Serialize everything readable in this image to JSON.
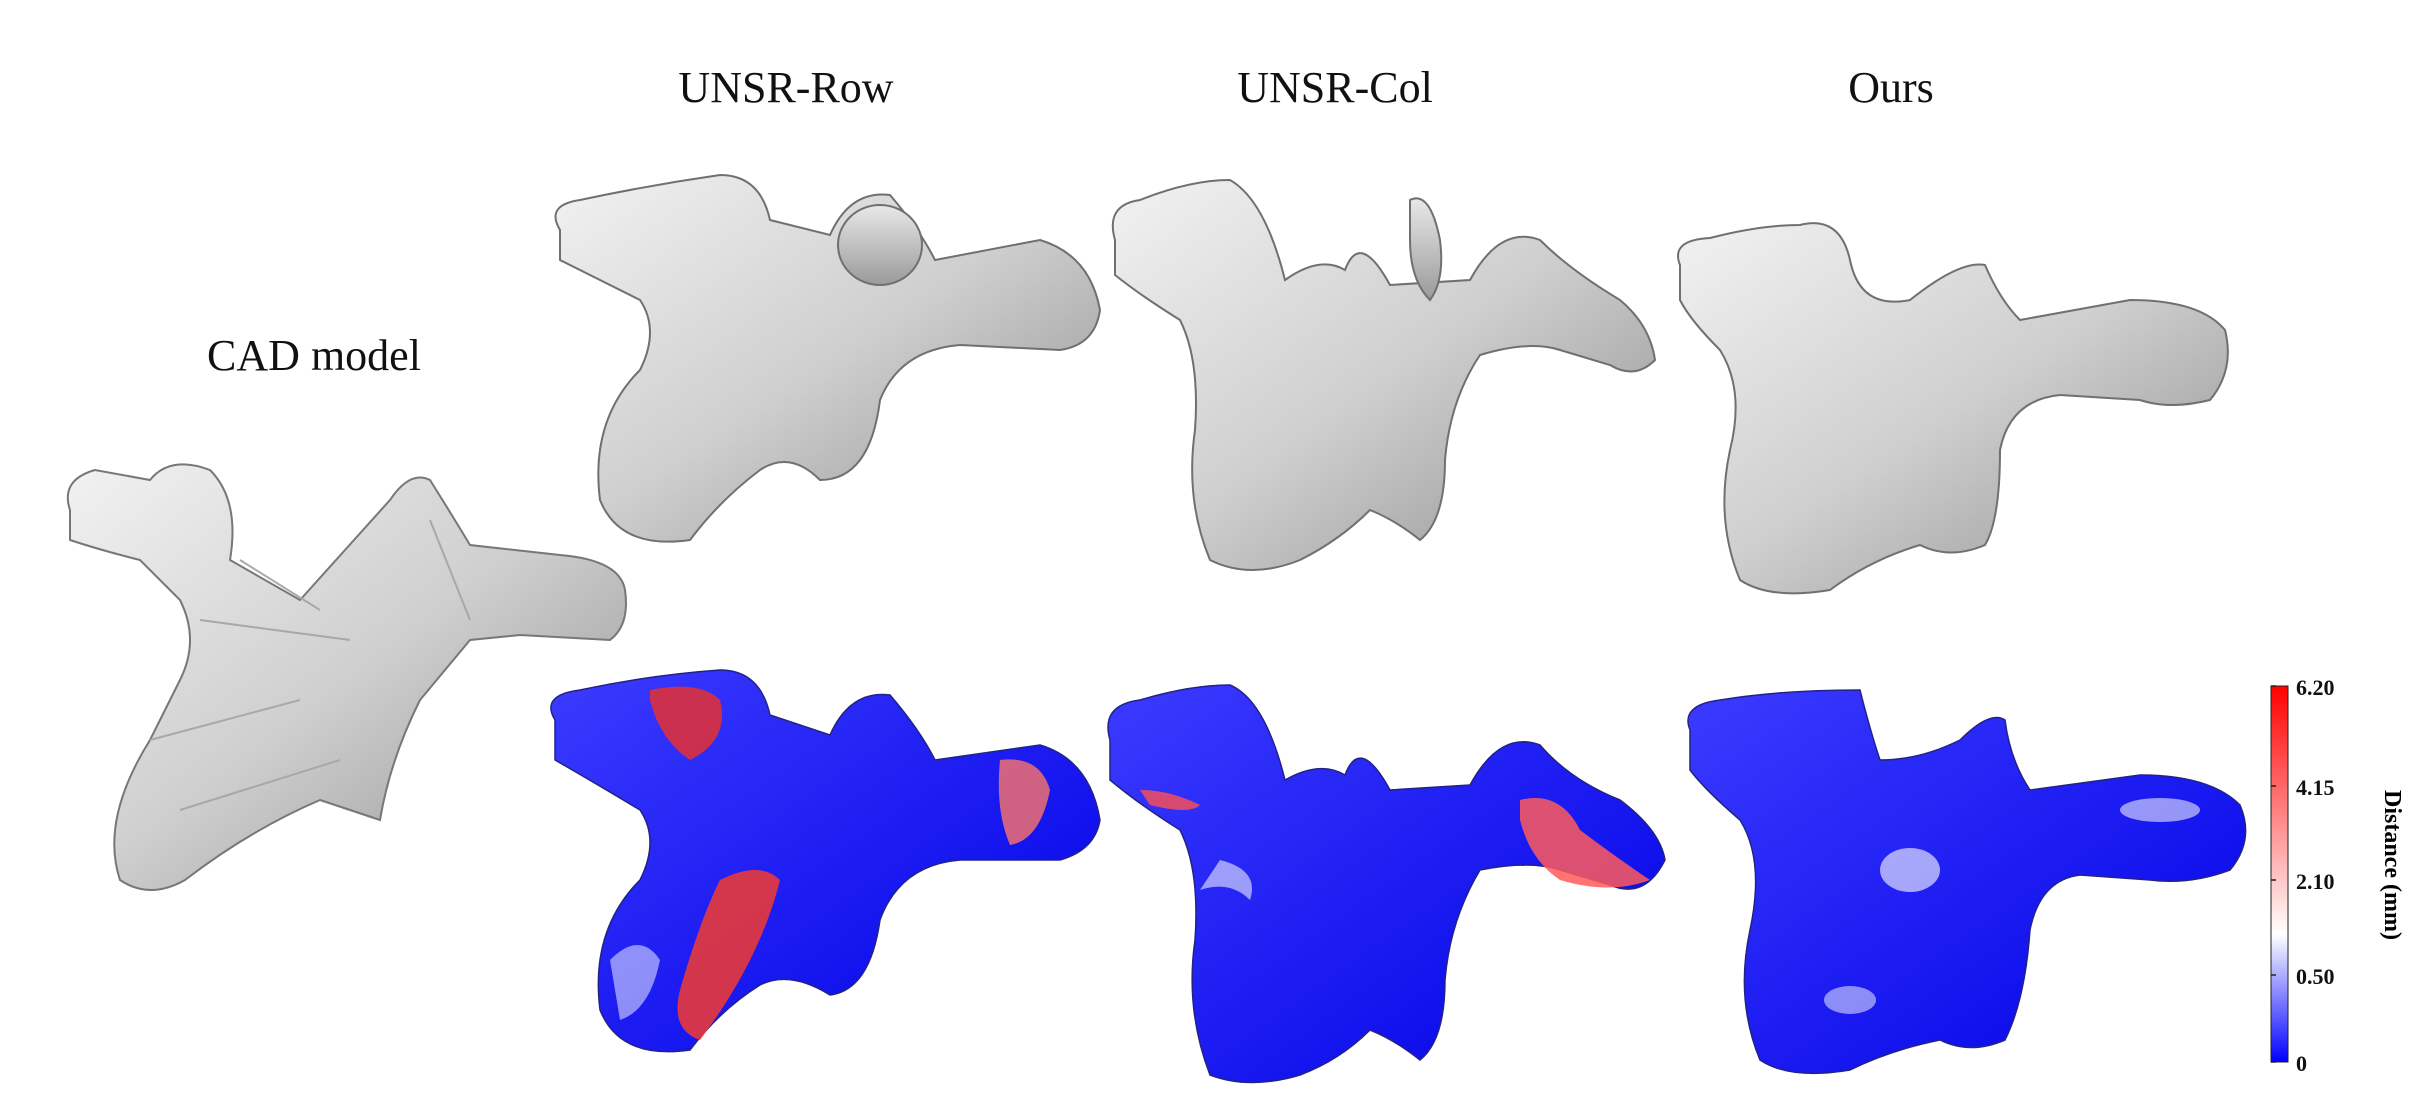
{
  "titles": {
    "cad": "CAD model",
    "row": "UNSR-Row",
    "col": "UNSR-Col",
    "ours": "Ours"
  },
  "colorbar": {
    "title": "Distance (mm)",
    "ticks": [
      "6.20",
      "4.15",
      "2.10",
      "0.50",
      "0"
    ],
    "colors": {
      "high": "#ff0000",
      "mid": "#ffffff",
      "low": "#0000ff"
    }
  }
}
